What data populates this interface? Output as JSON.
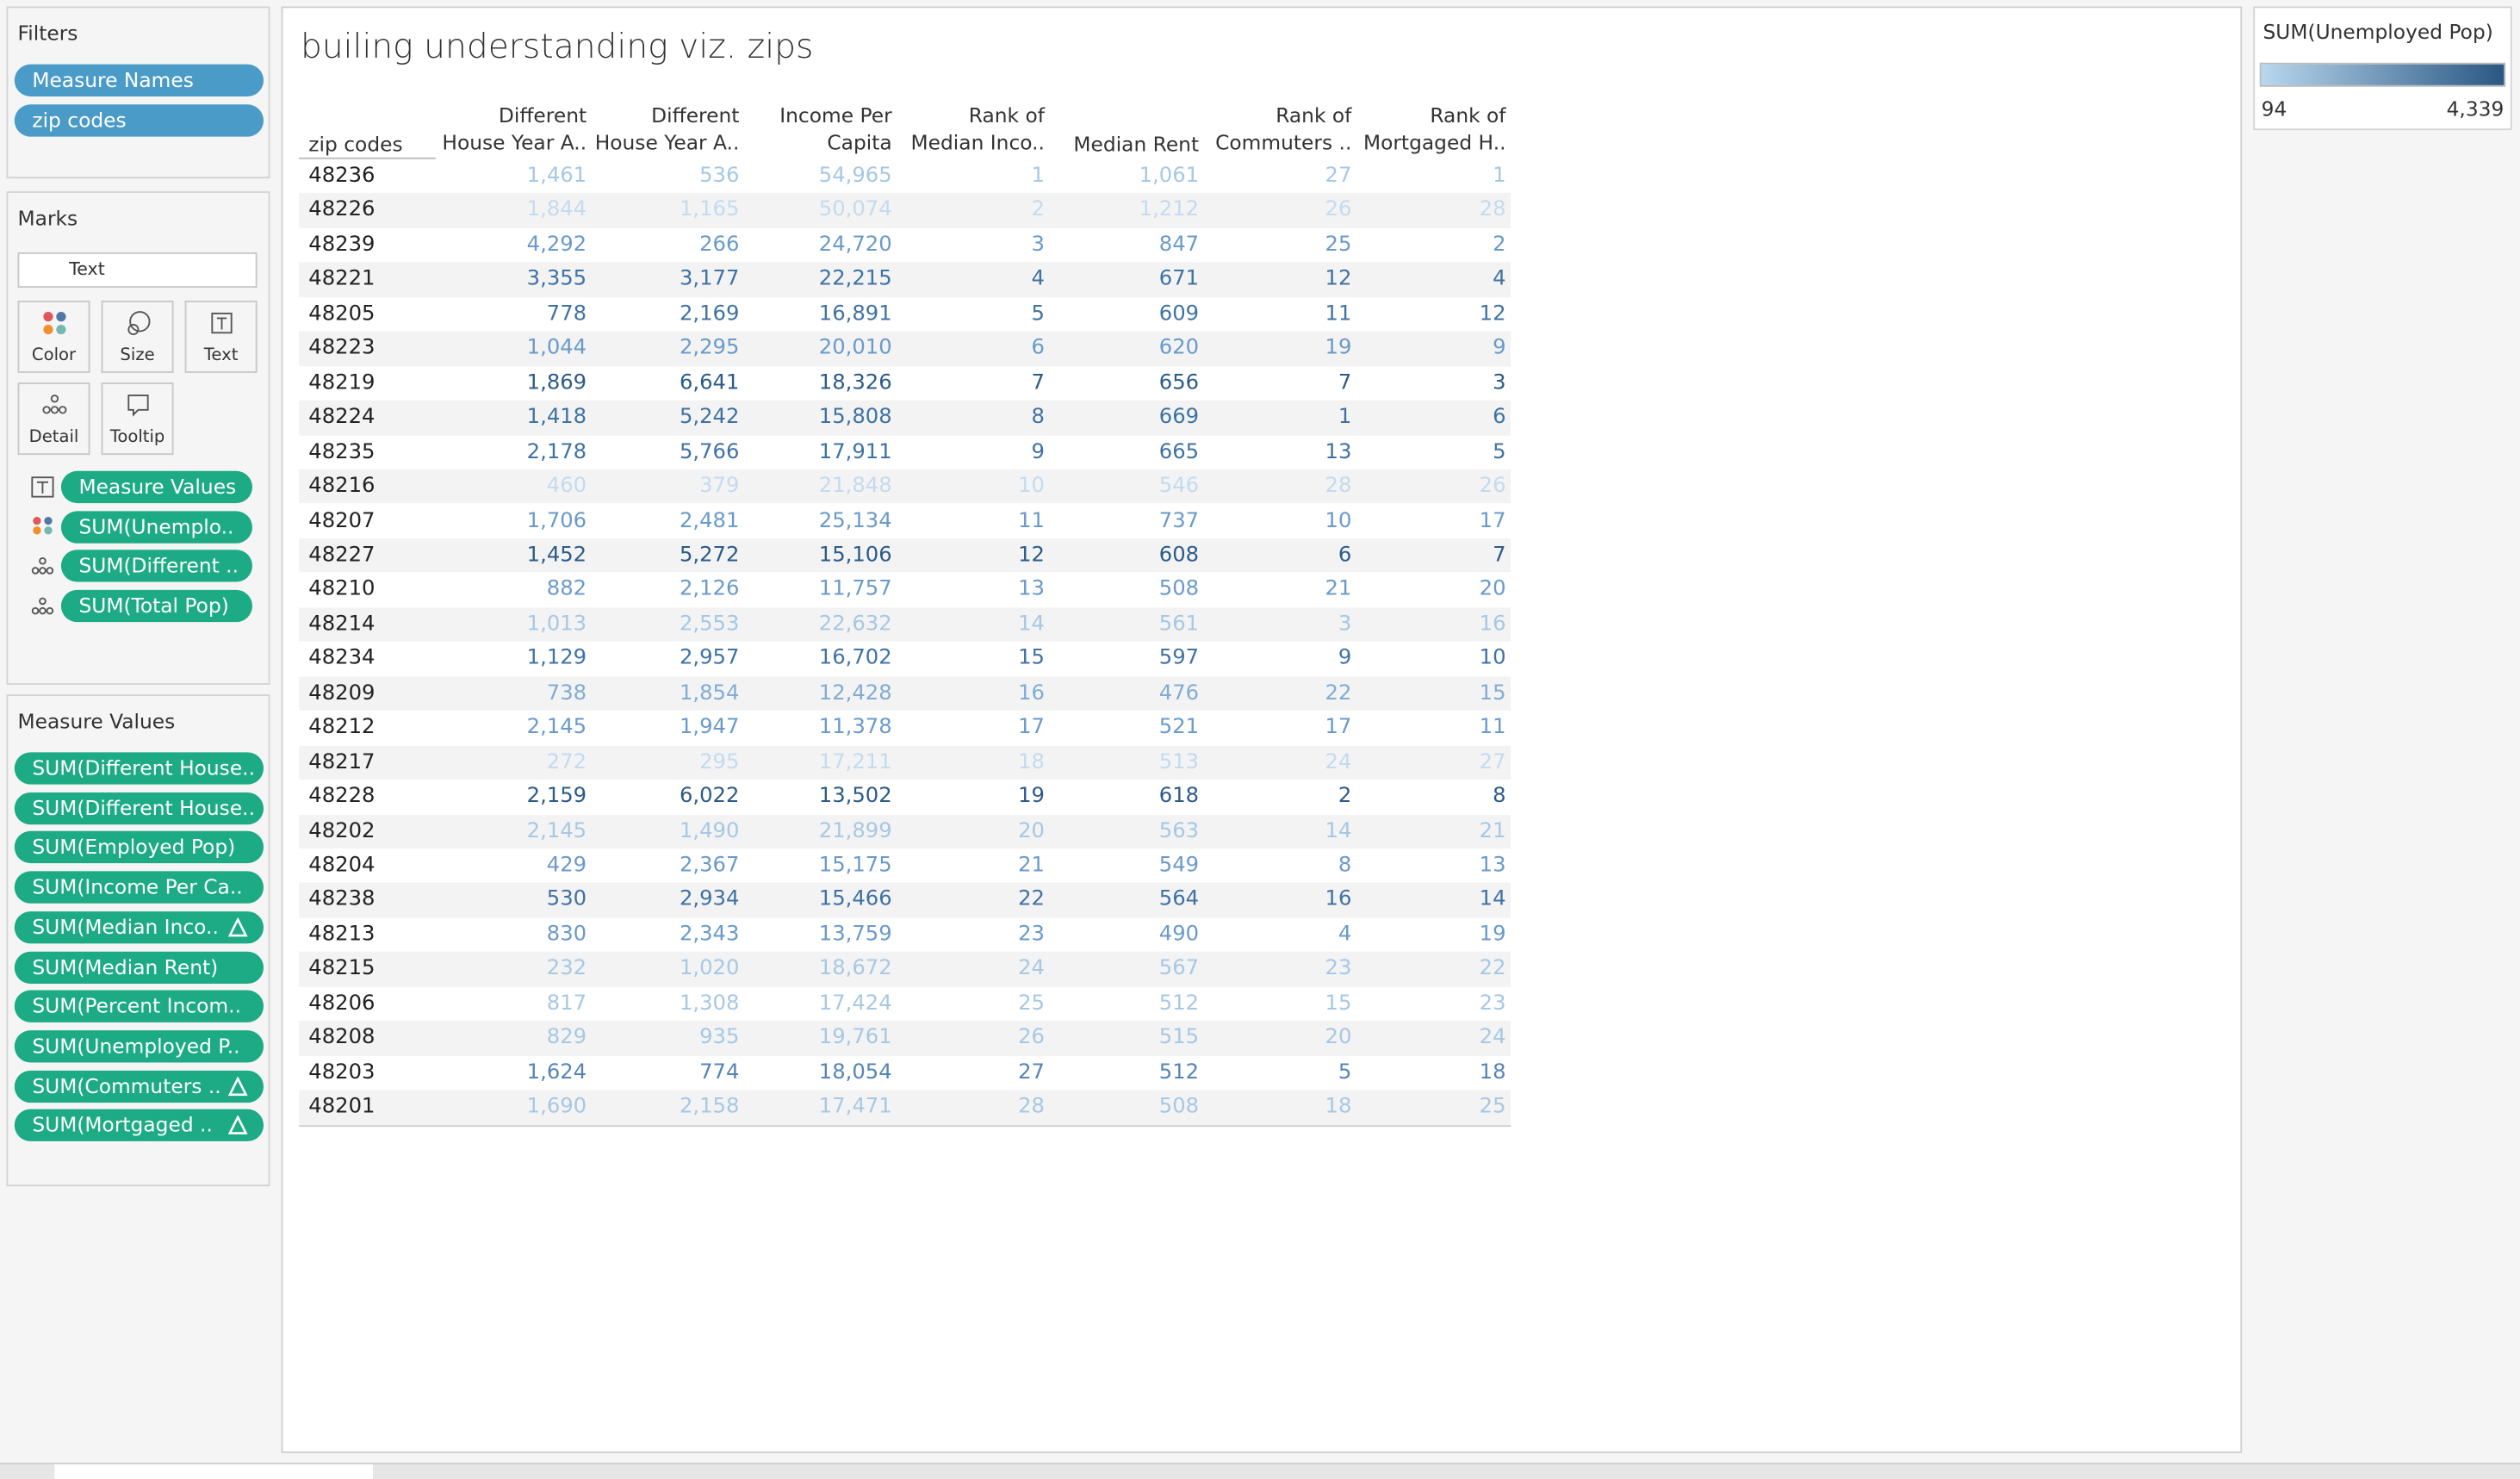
{
  "filters": {
    "title": "Filters",
    "pills": [
      "Measure Names",
      "zip codes"
    ]
  },
  "marks": {
    "title": "Marks",
    "mark_type": "Text",
    "buttons": [
      "Color",
      "Size",
      "Text",
      "Detail",
      "Tooltip"
    ],
    "pills": [
      "Measure Values",
      "SUM(Unemplo..",
      "SUM(Different ..",
      "SUM(Total Pop)"
    ]
  },
  "measure_values": {
    "title": "Measure Values",
    "pills": [
      "SUM(Different House..",
      "SUM(Different House..",
      "SUM(Employed Pop)",
      "SUM(Income Per Ca..",
      "SUM(Median Inco..",
      "SUM(Median Rent)",
      "SUM(Percent Incom..",
      "SUM(Unemployed P..",
      "SUM(Commuters ..",
      "SUM(Mortgaged .."
    ]
  },
  "sheet": {
    "title": "builing understanding viz. zips",
    "table": {
      "headers": [
        "zip codes",
        "Different\nHouse Year A..",
        "Different\nHouse Year A..",
        "Income Per\nCapita",
        "Rank of\nMedian Inco..",
        "Median Rent",
        "Rank of\nCommuters ..",
        "Rank of\nMortgaged H.."
      ],
      "rows": [
        [
          "48236",
          "1,461",
          "536",
          "54,965",
          "1",
          "1,061",
          "27",
          "1"
        ],
        [
          "48226",
          "1,844",
          "1,165",
          "50,074",
          "2",
          "1,212",
          "26",
          "28"
        ],
        [
          "48239",
          "4,292",
          "266",
          "24,720",
          "3",
          "847",
          "25",
          "2"
        ],
        [
          "48221",
          "3,355",
          "3,177",
          "22,215",
          "4",
          "671",
          "12",
          "4"
        ],
        [
          "48205",
          "778",
          "2,169",
          "16,891",
          "5",
          "609",
          "11",
          "12"
        ],
        [
          "48223",
          "1,044",
          "2,295",
          "20,010",
          "6",
          "620",
          "19",
          "9"
        ],
        [
          "48219",
          "1,869",
          "6,641",
          "18,326",
          "7",
          "656",
          "7",
          "3"
        ],
        [
          "48224",
          "1,418",
          "5,242",
          "15,808",
          "8",
          "669",
          "1",
          "6"
        ],
        [
          "48235",
          "2,178",
          "5,766",
          "17,911",
          "9",
          "665",
          "13",
          "5"
        ],
        [
          "48216",
          "460",
          "379",
          "21,848",
          "10",
          "546",
          "28",
          "26"
        ],
        [
          "48207",
          "1,706",
          "2,481",
          "25,134",
          "11",
          "737",
          "10",
          "17"
        ],
        [
          "48227",
          "1,452",
          "5,272",
          "15,106",
          "12",
          "608",
          "6",
          "7"
        ],
        [
          "48210",
          "882",
          "2,126",
          "11,757",
          "13",
          "508",
          "21",
          "20"
        ],
        [
          "48214",
          "1,013",
          "2,553",
          "22,632",
          "14",
          "561",
          "3",
          "16"
        ],
        [
          "48234",
          "1,129",
          "2,957",
          "16,702",
          "15",
          "597",
          "9",
          "10"
        ],
        [
          "48209",
          "738",
          "1,854",
          "12,428",
          "16",
          "476",
          "22",
          "15"
        ],
        [
          "48212",
          "2,145",
          "1,947",
          "11,378",
          "17",
          "521",
          "17",
          "11"
        ],
        [
          "48217",
          "272",
          "295",
          "17,211",
          "18",
          "513",
          "24",
          "27"
        ],
        [
          "48228",
          "2,159",
          "6,022",
          "13,502",
          "19",
          "618",
          "2",
          "8"
        ],
        [
          "48202",
          "2,145",
          "1,490",
          "21,899",
          "20",
          "563",
          "14",
          "21"
        ],
        [
          "48204",
          "429",
          "2,367",
          "15,175",
          "21",
          "549",
          "8",
          "13"
        ],
        [
          "48238",
          "530",
          "2,934",
          "15,466",
          "22",
          "564",
          "16",
          "14"
        ],
        [
          "48213",
          "830",
          "2,343",
          "13,759",
          "23",
          "490",
          "4",
          "19"
        ],
        [
          "48215",
          "232",
          "1,020",
          "18,672",
          "24",
          "567",
          "23",
          "22"
        ],
        [
          "48206",
          "817",
          "1,308",
          "17,424",
          "25",
          "512",
          "15",
          "23"
        ],
        [
          "48208",
          "829",
          "935",
          "19,761",
          "26",
          "515",
          "20",
          "24"
        ],
        [
          "48203",
          "1,624",
          "774",
          "18,054",
          "27",
          "512",
          "5",
          "18"
        ],
        [
          "48201",
          "1,690",
          "2,158",
          "17,471",
          "28",
          "508",
          "18",
          "25"
        ]
      ],
      "row_colors": [
        "#a6c8e4",
        "#c3dbef",
        "#6a9acb",
        "#3f72a4",
        "#3f72a4",
        "#6a9acb",
        "#2c5b8a",
        "#3f72a4",
        "#3f72a4",
        "#c3dbef",
        "#6a9acb",
        "#2c5b8a",
        "#6a9acb",
        "#a6c8e4",
        "#3f72a4",
        "#80acd5",
        "#6a9acb",
        "#c3dbef",
        "#2c5b8a",
        "#a6c8e4",
        "#6a9acb",
        "#3f72a4",
        "#6a9acb",
        "#a6c8e4",
        "#a6c8e4",
        "#a6c8e4",
        "#5585b8",
        "#a6c8e4"
      ]
    }
  },
  "legend": {
    "title": "SUM(Unemployed Pop)",
    "min": "94",
    "max": "4,339",
    "colors": [
      "#b9d7ee",
      "#2a5783"
    ]
  }
}
